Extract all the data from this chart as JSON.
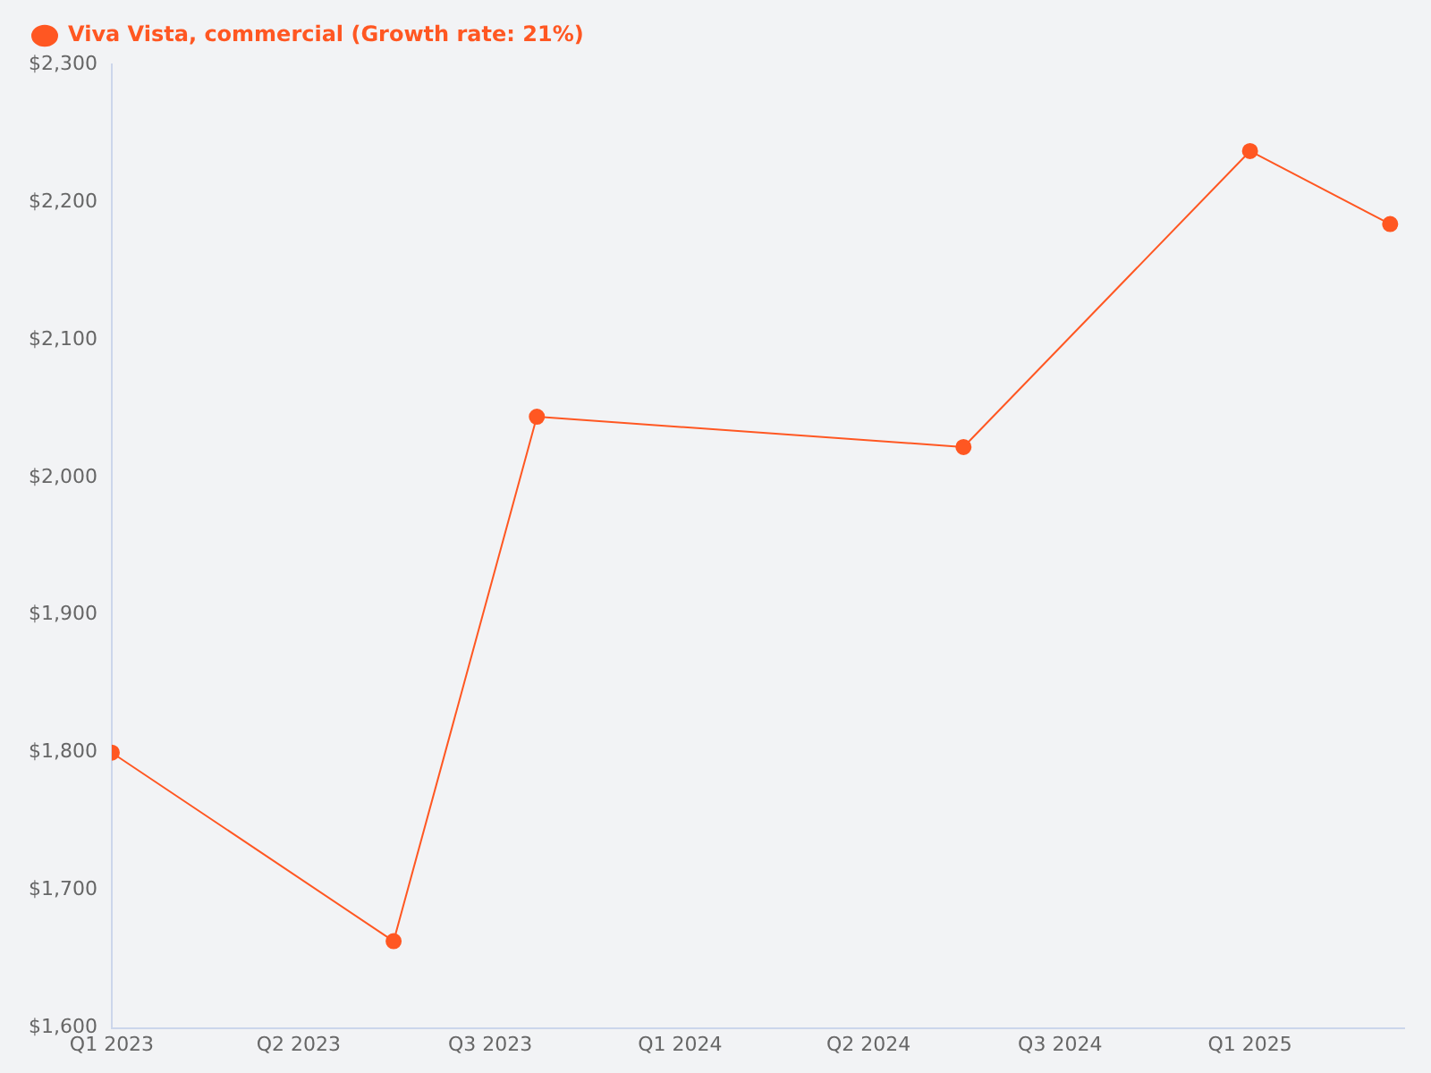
{
  "chart_data": {
    "type": "line",
    "x": [
      "2023-01-01",
      "2023-07-01",
      "2023-10-01",
      "2024-07-01",
      "2025-01-01",
      "2025-04-01"
    ],
    "series": [
      {
        "name": "Viva Vista, commercial (Growth rate: 21%)",
        "color": "#ff5722",
        "values": [
          1800,
          1663,
          2044,
          2022,
          2237,
          2184
        ]
      }
    ],
    "xlim": [
      "2023-01-01",
      "2025-04-10"
    ],
    "xticks": [
      {
        "value": "2023-01-01",
        "label": "Q1 2023"
      },
      {
        "value": "2023-05-01",
        "label": "Q2 2023"
      },
      {
        "value": "2023-09-01",
        "label": "Q3 2023"
      },
      {
        "value": "2024-01-01",
        "label": "Q1 2024"
      },
      {
        "value": "2024-05-01",
        "label": "Q2 2024"
      },
      {
        "value": "2024-09-01",
        "label": "Q3 2024"
      },
      {
        "value": "2025-01-01",
        "label": "Q1 2025"
      }
    ],
    "ylim": [
      1600,
      2300
    ],
    "yticks": [
      {
        "value": 1600,
        "label": "$1,600"
      },
      {
        "value": 1700,
        "label": "$1,700"
      },
      {
        "value": 1800,
        "label": "$1,800"
      },
      {
        "value": 1900,
        "label": "$1,900"
      },
      {
        "value": 2000,
        "label": "$2,000"
      },
      {
        "value": 2100,
        "label": "$2,100"
      },
      {
        "value": 2200,
        "label": "$2,200"
      },
      {
        "value": 2300,
        "label": "$2,300"
      }
    ],
    "grid": false,
    "legend": "top left",
    "marker": "circle",
    "line_style": "solid"
  }
}
